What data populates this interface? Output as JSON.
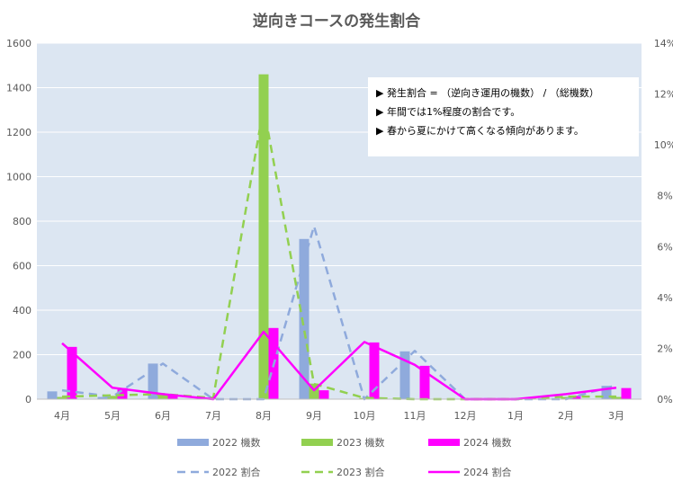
{
  "chart_data": {
    "type": "bar",
    "title": "逆向きコースの発生割合",
    "categories": [
      "4月",
      "5月",
      "6月",
      "7月",
      "8月",
      "9月",
      "10月",
      "11月",
      "12月",
      "1月",
      "2月",
      "3月"
    ],
    "y_left": {
      "min": 0,
      "max": 1600,
      "ticks": [
        "0",
        "200",
        "400",
        "600",
        "800",
        "1000",
        "1200",
        "1400",
        "1600"
      ]
    },
    "y_right": {
      "min": 0,
      "max": 14,
      "ticks": [
        "0%",
        "2%",
        "4%",
        "6%",
        "8%",
        "10%",
        "12%",
        "14%"
      ]
    },
    "grid": true,
    "legend_position": "bottom",
    "bar_series": [
      {
        "name": "2022 機数",
        "color": "#8faadc",
        "values": [
          35,
          10,
          160,
          0,
          0,
          720,
          0,
          215,
          0,
          0,
          0,
          60
        ]
      },
      {
        "name": "2023 機数",
        "color": "#92d050",
        "values": [
          10,
          15,
          20,
          5,
          1460,
          70,
          5,
          0,
          0,
          0,
          10,
          10
        ]
      },
      {
        "name": "2024 機数",
        "color": "#ff00ff",
        "values": [
          235,
          50,
          20,
          0,
          320,
          40,
          255,
          150,
          0,
          0,
          15,
          50
        ]
      }
    ],
    "line_series": [
      {
        "name": "2022 割合",
        "color": "#8faadc",
        "dash": true,
        "values": [
          0.35,
          0.1,
          1.4,
          0,
          0,
          6.8,
          0,
          1.9,
          0,
          0,
          0,
          0.55
        ]
      },
      {
        "name": "2023 割合",
        "color": "#92d050",
        "dash": true,
        "values": [
          0.1,
          0.15,
          0.2,
          0.05,
          11.5,
          0.6,
          0.05,
          0,
          0,
          0,
          0.1,
          0.1
        ]
      },
      {
        "name": "2024 割合",
        "color": "#ff00ff",
        "dash": false,
        "values": [
          2.2,
          0.45,
          0.2,
          0,
          2.65,
          0.35,
          2.25,
          1.35,
          0,
          0,
          0.2,
          0.45
        ]
      }
    ],
    "annotation": {
      "lines": [
        "▶ 発生割合 = （逆向き運用の機数） / （総機数）",
        "▶ 年間では1%程度の割合です。",
        "▶ 春から夏にかけて高くなる傾向があります。"
      ]
    }
  },
  "colors": {
    "plot_background": "#dce6f2",
    "gridline": "#ffffff",
    "text": "#595959"
  }
}
